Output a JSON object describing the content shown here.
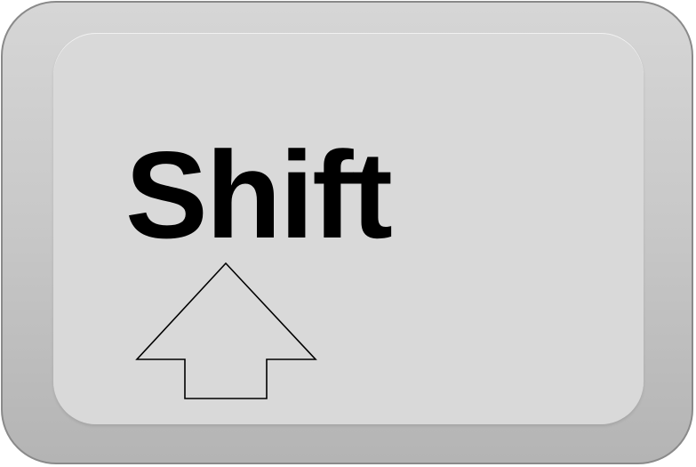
{
  "key": {
    "label": "Shift",
    "icon": "shift-arrow-up-icon",
    "colors": {
      "face": "#d9d9d9",
      "rim_top": "#d6d6d6",
      "rim_bottom": "#b4b4b4",
      "border": "#8a8a8a",
      "text": "#000000",
      "arrow_stroke": "#000000"
    }
  }
}
